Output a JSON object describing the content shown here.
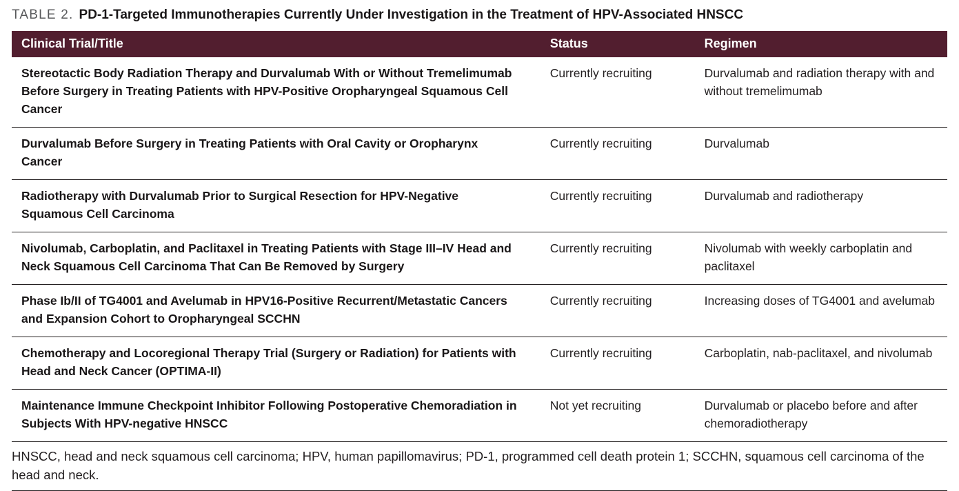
{
  "table": {
    "label": "TABLE 2.",
    "title": "PD-1-Targeted Immunotherapies Currently Under Investigation in the Treatment of HPV-Associated HNSCC",
    "columns": [
      "Clinical Trial/Title",
      "Status",
      "Regimen"
    ],
    "rows": [
      {
        "title": "Stereotactic Body Radiation Therapy and Durvalumab With or Without Tremelimumab Before Surgery in Treating Patients with HPV-Positive Oropharyngeal Squamous Cell Cancer",
        "status": "Currently recruiting",
        "regimen": "Durvalumab and radiation therapy with and without tremelimumab"
      },
      {
        "title": "Durvalumab Before Surgery in Treating Patients with Oral Cavity or Oropharynx Cancer",
        "status": "Currently recruiting",
        "regimen": "Durvalumab"
      },
      {
        "title": "Radiotherapy with Durvalumab Prior to Surgical Resection for HPV-Negative Squamous Cell Carcinoma",
        "status": "Currently recruiting",
        "regimen": "Durvalumab and radiotherapy"
      },
      {
        "title": "Nivolumab, Carboplatin, and Paclitaxel in Treating Patients with Stage III–IV Head and Neck Squamous Cell Carcinoma That Can Be Removed by Surgery",
        "status": "Currently recruiting",
        "regimen": "Nivolumab with weekly carboplatin and paclitaxel"
      },
      {
        "title": "Phase Ib/II of TG4001 and Avelumab in HPV16-Positive Recurrent/Metastatic Cancers and Expansion Cohort to Oropharyngeal SCCHN",
        "status": "Currently recruiting",
        "regimen": "Increasing doses of TG4001 and avelumab"
      },
      {
        "title": "Chemotherapy and Locoregional Therapy Trial (Surgery or Radiation) for Patients with Head and Neck Cancer (OPTIMA-II)",
        "status": "Currently recruiting",
        "regimen": "Carboplatin, nab-paclitaxel, and nivolumab"
      },
      {
        "title": "Maintenance Immune Checkpoint Inhibitor Following Postoperative Chemoradiation in Subjects With HPV-negative HNSCC",
        "status": "Not yet recruiting",
        "regimen": "Durvalumab or placebo before and after chemoradiotherapy"
      }
    ],
    "footnote": "HNSCC, head and neck squamous cell carcinoma; HPV, human papillomavirus; PD-1, programmed cell death protein 1; SCCHN, squamous cell carcinoma of the head and neck.",
    "colors": {
      "header_bg": "#521e2f",
      "header_text": "#ffffff",
      "body_text": "#231f20"
    }
  }
}
